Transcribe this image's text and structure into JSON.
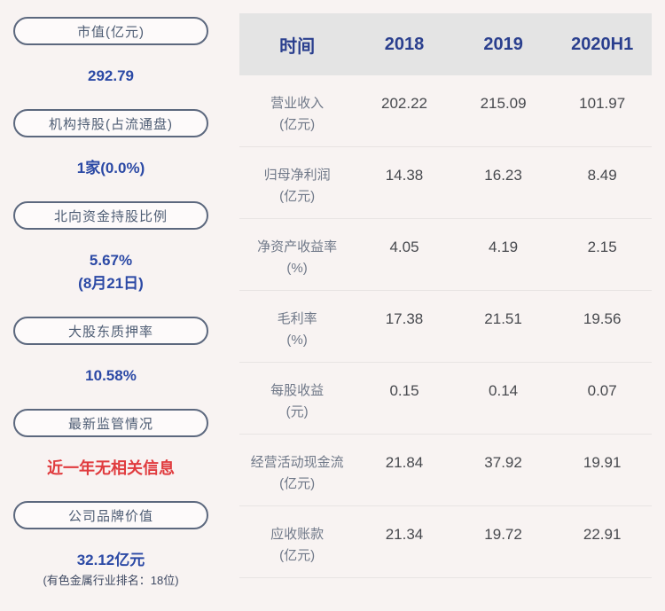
{
  "sidebar": {
    "items": [
      {
        "label": "市值(亿元)",
        "value": "292.79"
      },
      {
        "label": "机构持股(占流通盘)",
        "value": "1家(0.0%)"
      },
      {
        "label": "北向资金持股比例",
        "value": "5.67%",
        "value2": "(8月21日)"
      },
      {
        "label": "大股东质押率",
        "value": "10.58%"
      },
      {
        "label": "最新监管情况",
        "value": "近一年无相关信息",
        "emphasis": "red"
      },
      {
        "label": "公司品牌价值",
        "value": "32.12亿元",
        "sub": "(有色金属行业排名：18位)"
      }
    ]
  },
  "chart_data": {
    "type": "table",
    "title": "",
    "columns": [
      "时间",
      "2018",
      "2019",
      "2020H1"
    ],
    "rows": [
      {
        "label": "营业收入",
        "unit": "(亿元)",
        "values": [
          "202.22",
          "215.09",
          "101.97"
        ]
      },
      {
        "label": "归母净利润",
        "unit": "(亿元)",
        "values": [
          "14.38",
          "16.23",
          "8.49"
        ]
      },
      {
        "label": "净资产收益率",
        "unit": "(%)",
        "values": [
          "4.05",
          "4.19",
          "2.15"
        ]
      },
      {
        "label": "毛利率",
        "unit": "(%)",
        "values": [
          "17.38",
          "21.51",
          "19.56"
        ]
      },
      {
        "label": "每股收益",
        "unit": "(元)",
        "values": [
          "0.15",
          "0.14",
          "0.07"
        ]
      },
      {
        "label": "经营活动现金流",
        "unit": "(亿元)",
        "values": [
          "21.84",
          "37.92",
          "19.91"
        ]
      },
      {
        "label": "应收账款",
        "unit": "(亿元)",
        "values": [
          "21.34",
          "19.72",
          "22.91"
        ]
      }
    ],
    "layout": {
      "header_position": "top",
      "grid": "horizontal-row-separators"
    }
  },
  "colors": {
    "page_bg": "#f8f3f2",
    "header_bg": "#e4e4e4",
    "header_text_blue": "#2a3f8e",
    "value_blue": "#2b49a5",
    "alert_red": "#e03b3e",
    "pill_border": "#5c687e",
    "pill_text": "#4e5d74",
    "table_label_grey": "#6f7888",
    "table_value_grey": "#47494e"
  }
}
